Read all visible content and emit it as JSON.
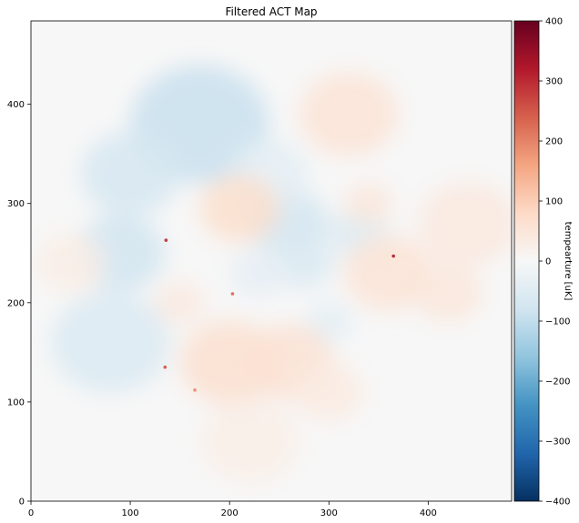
{
  "chart_data": {
    "type": "heatmap",
    "title": "Filtered ACT Map",
    "xlabel": "",
    "ylabel": "",
    "xlim": [
      0,
      484
    ],
    "ylim": [
      0,
      484
    ],
    "xticks": [
      0,
      100,
      200,
      300,
      400
    ],
    "yticks": [
      0,
      100,
      200,
      300,
      400
    ],
    "grid": false,
    "colormap": "RdBu_r",
    "colorbar": {
      "label": "tempearture [uK]",
      "range": [
        -400,
        400
      ],
      "ticks": [
        -400,
        -300,
        -200,
        -100,
        0,
        100,
        200,
        300,
        400
      ],
      "tick_labels": [
        "−400",
        "−300",
        "−200",
        "−100",
        "0",
        "100",
        "200",
        "300",
        "400"
      ],
      "colors": [
        "#053061",
        "#2166ac",
        "#4393c3",
        "#92c5de",
        "#d1e5f0",
        "#f7f7f7",
        "#fddbc7",
        "#f4a582",
        "#d6604d",
        "#b2182b",
        "#67001f"
      ]
    },
    "regions": [
      {
        "x": 170,
        "y": 380,
        "radius": 70,
        "value": -90
      },
      {
        "x": 100,
        "y": 330,
        "radius": 50,
        "value": -70
      },
      {
        "x": 90,
        "y": 250,
        "radius": 45,
        "value": -80
      },
      {
        "x": 80,
        "y": 160,
        "radius": 60,
        "value": -60
      },
      {
        "x": 260,
        "y": 280,
        "radius": 40,
        "value": -75
      },
      {
        "x": 275,
        "y": 240,
        "radius": 30,
        "value": -60
      },
      {
        "x": 330,
        "y": 270,
        "radius": 30,
        "value": -55
      },
      {
        "x": 300,
        "y": 180,
        "radius": 25,
        "value": -40
      },
      {
        "x": 240,
        "y": 330,
        "radius": 40,
        "value": -40
      },
      {
        "x": 320,
        "y": 390,
        "radius": 50,
        "value": 55
      },
      {
        "x": 210,
        "y": 295,
        "radius": 40,
        "value": 70
      },
      {
        "x": 360,
        "y": 230,
        "radius": 45,
        "value": 55
      },
      {
        "x": 200,
        "y": 140,
        "radius": 50,
        "value": 65
      },
      {
        "x": 260,
        "y": 140,
        "radius": 45,
        "value": 60
      },
      {
        "x": 150,
        "y": 200,
        "radius": 25,
        "value": 40
      },
      {
        "x": 440,
        "y": 280,
        "radius": 50,
        "value": 40
      },
      {
        "x": 340,
        "y": 300,
        "radius": 25,
        "value": 45
      },
      {
        "x": 300,
        "y": 110,
        "radius": 35,
        "value": 35
      },
      {
        "x": 40,
        "y": 240,
        "radius": 35,
        "value": 30
      },
      {
        "x": 220,
        "y": 60,
        "radius": 50,
        "value": 25
      },
      {
        "x": 420,
        "y": 210,
        "radius": 35,
        "value": 45
      },
      {
        "x": 230,
        "y": 230,
        "radius": 30,
        "value": -35
      }
    ],
    "point_sources": [
      {
        "x": 136,
        "y": 263,
        "value": 280
      },
      {
        "x": 365,
        "y": 247,
        "value": 300
      },
      {
        "x": 203,
        "y": 209,
        "value": 220
      },
      {
        "x": 135,
        "y": 135,
        "value": 240
      },
      {
        "x": 165,
        "y": 112,
        "value": 180
      }
    ]
  }
}
